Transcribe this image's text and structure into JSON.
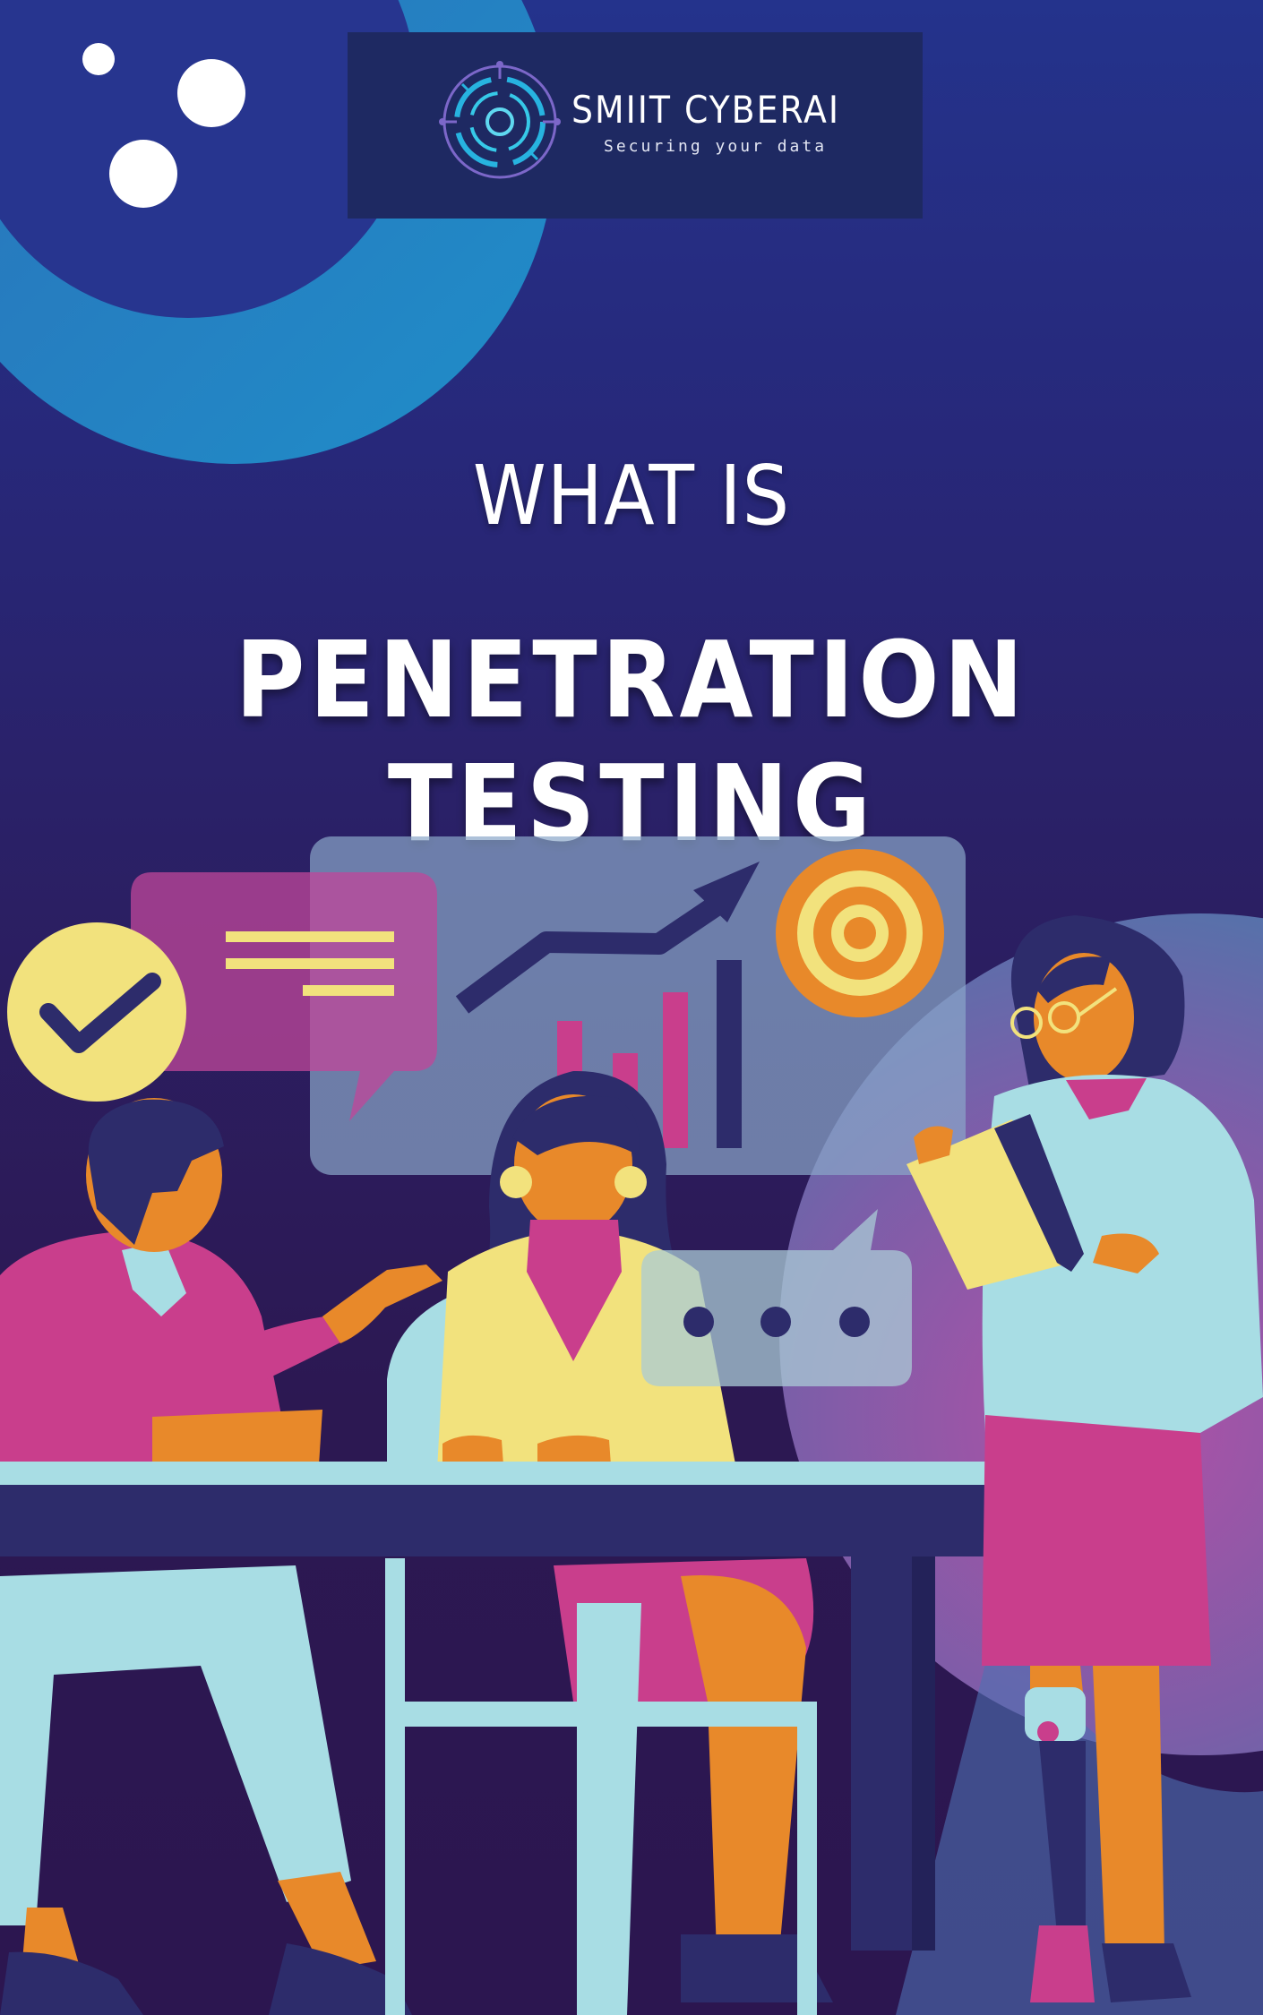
{
  "brand": {
    "name": "SMIIT CYBERAI",
    "tagline": "Securing your data"
  },
  "heading": {
    "kicker": "WHAT IS",
    "title": "PENETRATION TESTING"
  },
  "illustration": {
    "chat_dots": "• • •"
  },
  "colors": {
    "background_top": "#24338c",
    "background_bottom": "#2c1650",
    "logo_panel": "#1e2962",
    "accent_cyan": "#1fa9d8",
    "magenta": "#c93e8c",
    "light_cyan": "#a8dde4",
    "yellow": "#f2e27d",
    "orange": "#e8892a"
  }
}
